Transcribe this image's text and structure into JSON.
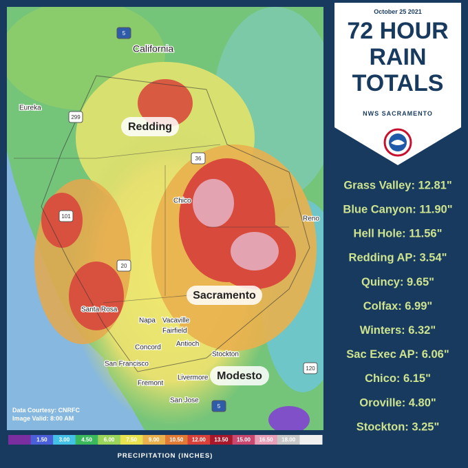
{
  "header": {
    "date": "October 25 2021",
    "title": [
      "72 HOUR",
      "RAIN",
      "TOTALS"
    ],
    "office": "NWS SACRAMENTO"
  },
  "totals": [
    "Grass Valley: 12.81\"",
    "Blue Canyon: 11.90\"",
    "Hell Hole: 11.56\"",
    "Redding AP: 3.54\"",
    "Quincy: 9.65\"",
    "Colfax: 6.99\"",
    "Winters: 6.32\"",
    "Sac Exec AP: 6.06\"",
    "Chico: 6.15\"",
    "Oroville: 4.80\"",
    "Stockton: 3.25\""
  ],
  "map": {
    "places": [
      "California",
      "Eureka",
      "Chico",
      "Reno",
      "Santa Rosa",
      "Napa",
      "Vacaville",
      "Fairfield",
      "Concord",
      "Antioch",
      "Stockton",
      "San Francisco",
      "Fremont",
      "Livermore",
      "San Jose"
    ],
    "highlights": [
      "Redding",
      "Sacramento",
      "Modesto"
    ],
    "shields": [
      "5",
      "299",
      "36",
      "101",
      "20",
      "120",
      "5"
    ],
    "credit": [
      "Data Courtesy: CNRFC",
      "Image Valid: 8:00 AM"
    ]
  },
  "legend": {
    "ticks": [
      "1.50",
      "3.00",
      "4.50",
      "6.00",
      "7.50",
      "9.00",
      "10.50",
      "12.00",
      "13.50",
      "15.00",
      "16.50",
      "18.00"
    ],
    "title": "PRECIPITATION (INCHES)"
  }
}
